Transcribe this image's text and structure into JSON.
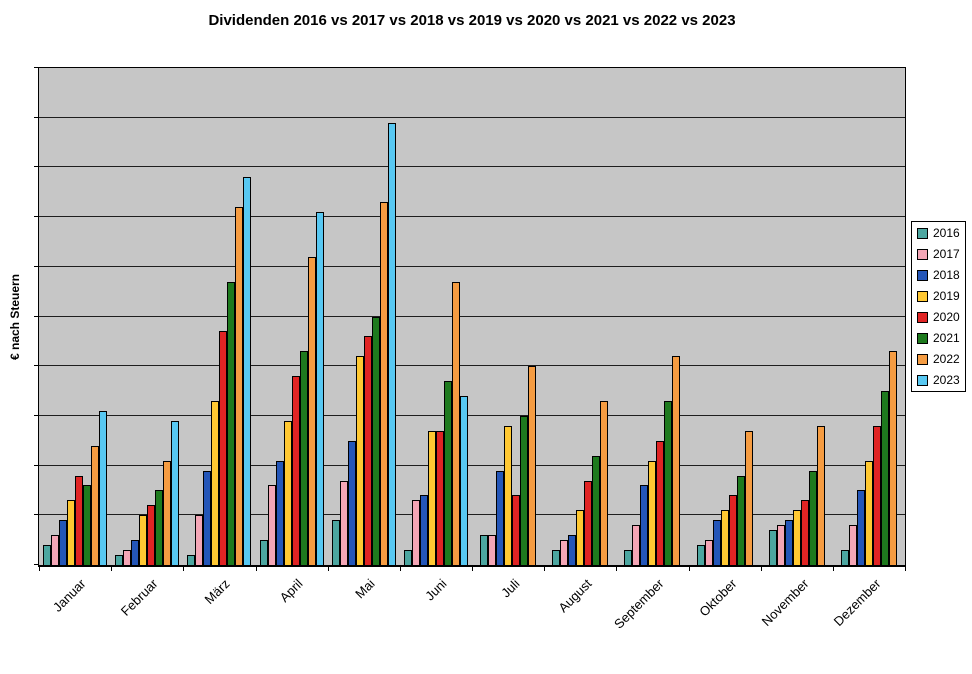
{
  "title": "Dividenden 2016 vs 2017 vs 2018 vs 2019 vs 2020 vs 2021 vs 2022 vs 2023",
  "y_axis_label": "€ nach Steuern",
  "chart_data": {
    "type": "bar",
    "title": "Dividenden 2016 vs 2017 vs 2018 vs 2019 vs 2020 vs 2021 vs 2022 vs 2023",
    "xlabel": "",
    "ylabel": "€ nach Steuern",
    "categories": [
      "Januar",
      "Februar",
      "März",
      "April",
      "Mai",
      "Juni",
      "Juli",
      "August",
      "September",
      "Oktober",
      "November",
      "Dezember"
    ],
    "ylim": [
      0,
      100
    ],
    "y_tick_labels_visible": false,
    "grid": "horizontal",
    "gridline_divisions": 10,
    "legend_position": "right",
    "plot_bg": "#C6C6C6",
    "note": "Y axis has tick marks but no numeric labels; values are relative heights in % of plot height, estimated from gridlines.",
    "series": [
      {
        "name": "2016",
        "color": "#4CA6A0",
        "values": [
          4,
          2,
          2,
          5,
          9,
          3,
          6,
          3,
          3,
          4,
          7,
          3
        ]
      },
      {
        "name": "2017",
        "color": "#F4A6B6",
        "values": [
          6,
          3,
          10,
          16,
          17,
          13,
          6,
          5,
          8,
          5,
          8,
          8
        ]
      },
      {
        "name": "2018",
        "color": "#2456B8",
        "values": [
          9,
          5,
          19,
          21,
          25,
          14,
          19,
          6,
          16,
          9,
          9,
          15
        ]
      },
      {
        "name": "2019",
        "color": "#FFC832",
        "values": [
          13,
          10,
          33,
          29,
          42,
          27,
          28,
          11,
          21,
          11,
          11,
          21
        ]
      },
      {
        "name": "2020",
        "color": "#E02424",
        "values": [
          18,
          12,
          47,
          38,
          46,
          27,
          14,
          17,
          25,
          14,
          13,
          28
        ]
      },
      {
        "name": "2021",
        "color": "#1E7A1E",
        "values": [
          16,
          15,
          57,
          43,
          50,
          37,
          30,
          22,
          33,
          18,
          19,
          35
        ]
      },
      {
        "name": "2022",
        "color": "#F59C42",
        "values": [
          24,
          21,
          72,
          62,
          73,
          57,
          40,
          33,
          42,
          27,
          28,
          43
        ]
      },
      {
        "name": "2023",
        "color": "#58C8F2",
        "values": [
          31,
          29,
          78,
          71,
          89,
          34,
          0,
          0,
          0,
          0,
          0,
          0
        ]
      }
    ]
  }
}
